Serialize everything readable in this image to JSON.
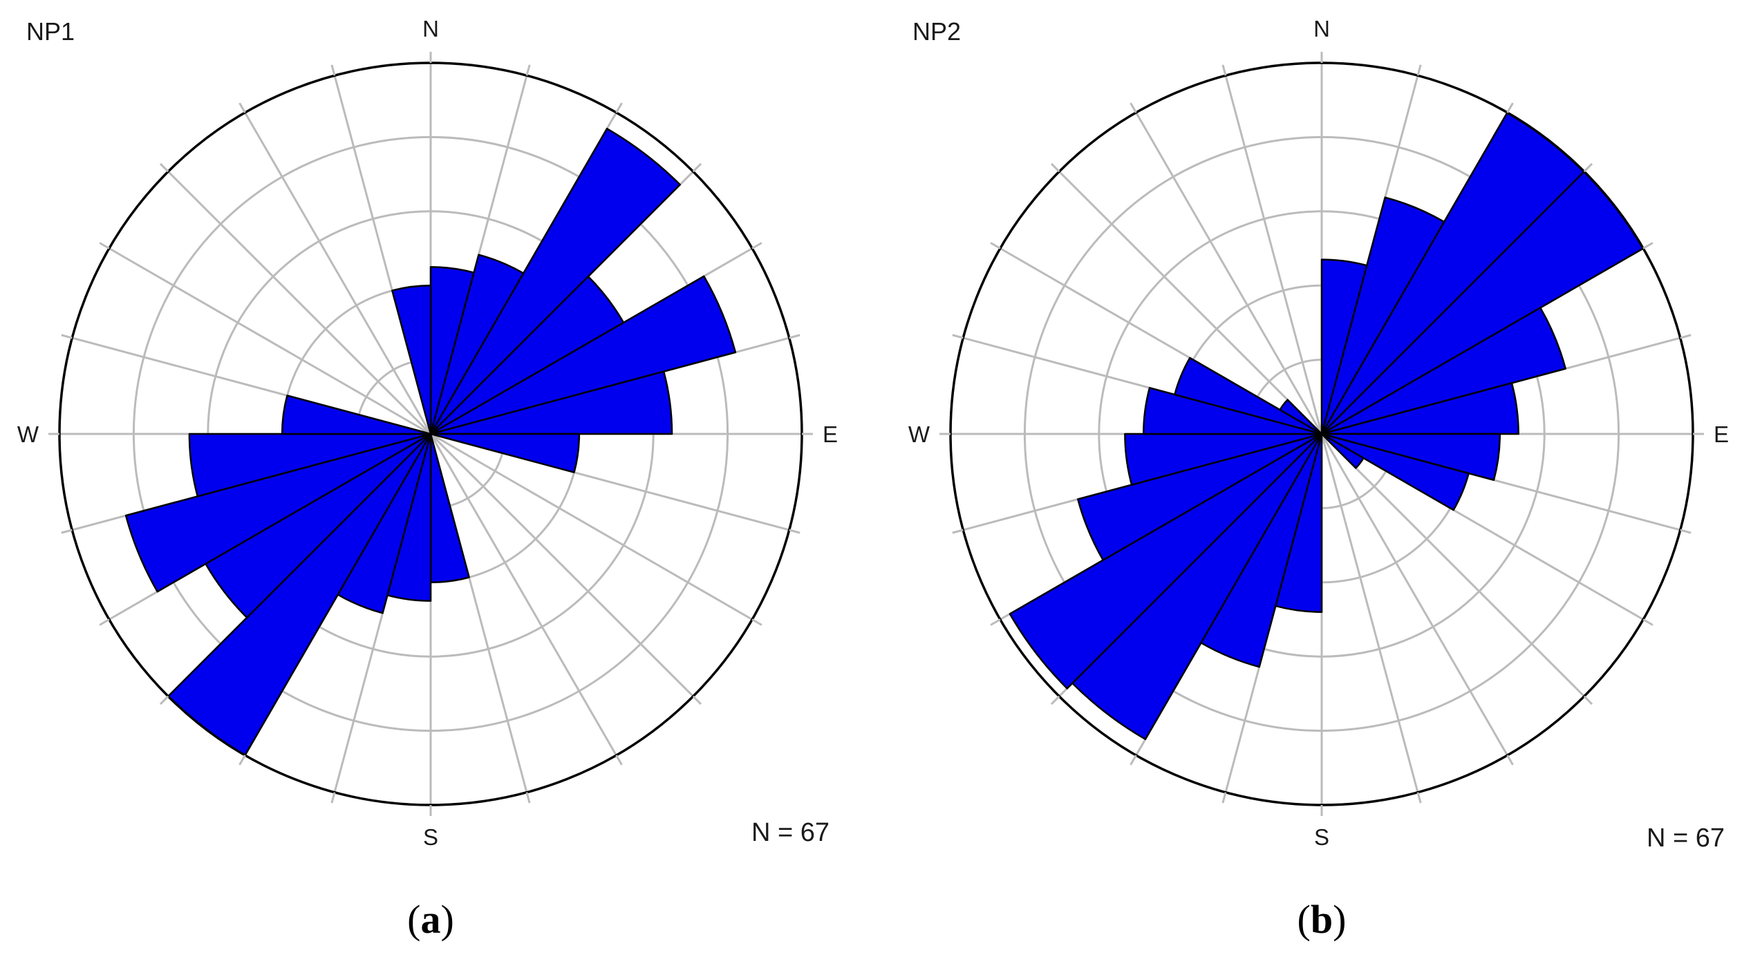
{
  "chart_data": [
    {
      "type": "rose",
      "panel_label": "NP1",
      "caption": {
        "open": "(",
        "letter": "a",
        "close": ")"
      },
      "n_label": "N = 67",
      "directions": {
        "north": "N",
        "east": "E",
        "south": "S",
        "west": "W"
      },
      "sector_width_deg": 15,
      "axis_max": 10,
      "ring_step": 2,
      "rings": [
        2,
        4,
        6,
        8,
        10
      ],
      "grid": true,
      "colors": {
        "bar_fill": "#0000ee",
        "bar_stroke": "#000000",
        "grid": "#bbbbbb",
        "outer_circle": "#000000"
      },
      "sectors": [
        {
          "from_deg": 0,
          "to_deg": 15,
          "count": 4.5
        },
        {
          "from_deg": 15,
          "to_deg": 30,
          "count": 5
        },
        {
          "from_deg": 30,
          "to_deg": 45,
          "count": 9.5
        },
        {
          "from_deg": 45,
          "to_deg": 60,
          "count": 6
        },
        {
          "from_deg": 60,
          "to_deg": 75,
          "count": 8.5
        },
        {
          "from_deg": 75,
          "to_deg": 90,
          "count": 6.5
        },
        {
          "from_deg": 90,
          "to_deg": 105,
          "count": 4
        },
        {
          "from_deg": 105,
          "to_deg": 120,
          "count": 0
        },
        {
          "from_deg": 120,
          "to_deg": 135,
          "count": 0
        },
        {
          "from_deg": 135,
          "to_deg": 150,
          "count": 0
        },
        {
          "from_deg": 150,
          "to_deg": 165,
          "count": 0
        },
        {
          "from_deg": 165,
          "to_deg": 180,
          "count": 4
        },
        {
          "from_deg": 180,
          "to_deg": 195,
          "count": 4.5
        },
        {
          "from_deg": 195,
          "to_deg": 210,
          "count": 5
        },
        {
          "from_deg": 210,
          "to_deg": 225,
          "count": 10
        },
        {
          "from_deg": 225,
          "to_deg": 240,
          "count": 7
        },
        {
          "from_deg": 240,
          "to_deg": 255,
          "count": 8.5
        },
        {
          "from_deg": 255,
          "to_deg": 270,
          "count": 6.5
        },
        {
          "from_deg": 270,
          "to_deg": 285,
          "count": 4
        },
        {
          "from_deg": 285,
          "to_deg": 300,
          "count": 0
        },
        {
          "from_deg": 300,
          "to_deg": 315,
          "count": 0
        },
        {
          "from_deg": 315,
          "to_deg": 330,
          "count": 0
        },
        {
          "from_deg": 330,
          "to_deg": 345,
          "count": 0
        },
        {
          "from_deg": 345,
          "to_deg": 360,
          "count": 4
        }
      ]
    },
    {
      "type": "rose",
      "panel_label": "NP2",
      "caption": {
        "open": "(",
        "letter": "b",
        "close": ")"
      },
      "n_label": "N = 67",
      "directions": {
        "north": "N",
        "east": "E",
        "south": "S",
        "west": "W"
      },
      "sector_width_deg": 15,
      "axis_max": 10,
      "ring_step": 2,
      "rings": [
        2,
        4,
        6,
        8,
        10
      ],
      "grid": true,
      "colors": {
        "bar_fill": "#0000ee",
        "bar_stroke": "#000000",
        "grid": "#bbbbbb",
        "outer_circle": "#000000"
      },
      "sectors": [
        {
          "from_deg": 0,
          "to_deg": 15,
          "count": 4.7
        },
        {
          "from_deg": 15,
          "to_deg": 30,
          "count": 6.6
        },
        {
          "from_deg": 30,
          "to_deg": 45,
          "count": 10
        },
        {
          "from_deg": 45,
          "to_deg": 60,
          "count": 10
        },
        {
          "from_deg": 60,
          "to_deg": 75,
          "count": 6.8
        },
        {
          "from_deg": 75,
          "to_deg": 90,
          "count": 5.3
        },
        {
          "from_deg": 90,
          "to_deg": 105,
          "count": 4.8
        },
        {
          "from_deg": 105,
          "to_deg": 120,
          "count": 4.1
        },
        {
          "from_deg": 120,
          "to_deg": 135,
          "count": 1.3
        },
        {
          "from_deg": 135,
          "to_deg": 150,
          "count": 0
        },
        {
          "from_deg": 150,
          "to_deg": 165,
          "count": 0
        },
        {
          "from_deg": 165,
          "to_deg": 180,
          "count": 0
        },
        {
          "from_deg": 180,
          "to_deg": 195,
          "count": 4.8
        },
        {
          "from_deg": 195,
          "to_deg": 210,
          "count": 6.5
        },
        {
          "from_deg": 210,
          "to_deg": 225,
          "count": 9.5
        },
        {
          "from_deg": 225,
          "to_deg": 240,
          "count": 9.7
        },
        {
          "from_deg": 240,
          "to_deg": 255,
          "count": 6.8
        },
        {
          "from_deg": 255,
          "to_deg": 270,
          "count": 5.3
        },
        {
          "from_deg": 270,
          "to_deg": 285,
          "count": 4.8
        },
        {
          "from_deg": 285,
          "to_deg": 300,
          "count": 4.1
        },
        {
          "from_deg": 300,
          "to_deg": 315,
          "count": 1.3
        },
        {
          "from_deg": 315,
          "to_deg": 330,
          "count": 0
        },
        {
          "from_deg": 330,
          "to_deg": 345,
          "count": 0
        },
        {
          "from_deg": 345,
          "to_deg": 360,
          "count": 0
        }
      ]
    }
  ]
}
